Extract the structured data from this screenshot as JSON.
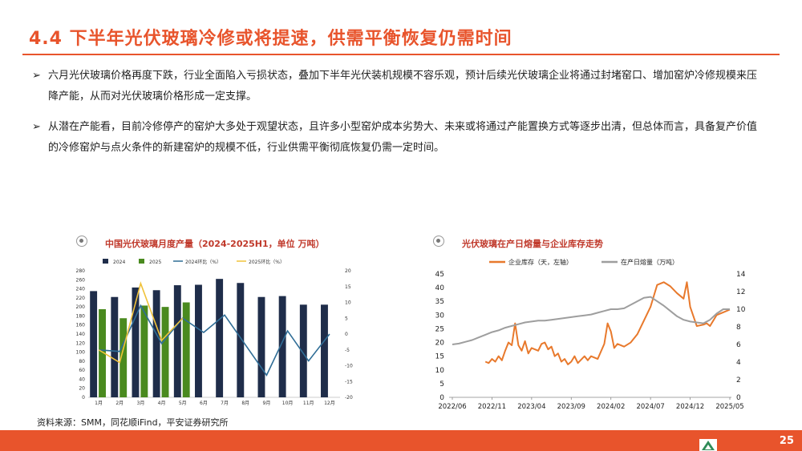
{
  "page": {
    "title": "4.4 下半年光伏玻璃冷修或将提速，供需平衡恢复仍需时间",
    "bullets": [
      "六月光伏玻璃价格再度下跌，行业全面陷入亏损状态，叠加下半年光伏装机规模不容乐观，预计后续光伏玻璃企业将通过封堵窑口、增加窑炉冷修规模来压降产能，从而对光伏玻璃价格形成一定支撑。",
      "从潜在产能看，目前冷修停产的窑炉大多处于观望状态，且许多小型窑炉成本劣势大、未来或将通过产能置换方式等逐步出清，但总体而言，具备复产价值的冷修窑炉与点火条件的新建窑炉的规模不低，行业供需平衡彻底恢复仍需一定时间。"
    ],
    "bullet_mark": "➢",
    "source": "资料来源：SMM，同花顺iFind，平安证券研究所",
    "page_number": "25",
    "colors": {
      "accent": "#e8542c"
    },
    "icons": {
      "panel": "target-circle-icon",
      "logo": "triangle-logo-icon"
    }
  },
  "chart_data": [
    {
      "type": "bar",
      "title": "中国光伏玻璃月度产量（2024-2025H1，单位 万吨）",
      "categories": [
        "1月",
        "2月",
        "3月",
        "4月",
        "5月",
        "6月",
        "7月",
        "8月",
        "9月",
        "10月",
        "11月",
        "12月"
      ],
      "series": [
        {
          "name": "2024",
          "kind": "bar",
          "axis": "left",
          "color": "#1f2d4a",
          "values": [
            235,
            222,
            243,
            237,
            248,
            249,
            262,
            253,
            222,
            224,
            205,
            205
          ]
        },
        {
          "name": "2025",
          "kind": "bar",
          "axis": "left",
          "color": "#4a8a1f",
          "values": [
            195,
            175,
            203,
            200,
            210,
            null,
            null,
            null,
            null,
            null,
            null,
            null
          ]
        },
        {
          "name": "2024环比（%）",
          "kind": "line",
          "axis": "right",
          "color": "#2f6d96",
          "values": [
            -5,
            -5.5,
            9,
            -3,
            5,
            0.5,
            6,
            -3.5,
            -13,
            1,
            -8.5,
            0
          ]
        },
        {
          "name": "2025环比（%）",
          "kind": "line",
          "axis": "right",
          "color": "#f0c23a",
          "values": [
            -5,
            -9,
            16,
            -2,
            5,
            null,
            null,
            null,
            null,
            null,
            null,
            null
          ]
        }
      ],
      "ylim_left": [
        0,
        280
      ],
      "yticks_left": [
        0,
        20,
        40,
        60,
        80,
        100,
        120,
        140,
        160,
        180,
        200,
        220,
        240,
        260,
        280
      ],
      "ylim_right": [
        -20,
        20
      ],
      "yticks_right": [
        -20,
        -15,
        -10,
        -5,
        0,
        5,
        10,
        15,
        20
      ],
      "legend": "top"
    },
    {
      "type": "line",
      "title": "光伏玻璃在产日熔量与企业库存走势",
      "x_ticks": [
        "2022/06",
        "2022/11",
        "2023/04",
        "2023/09",
        "2024/02",
        "2024/07",
        "2024/12",
        "2025/05"
      ],
      "series": [
        {
          "name": "企业库存（天，左轴）",
          "axis": "left",
          "color": "#e8792c",
          "x": [
            5,
            5.5,
            6,
            6.5,
            7,
            7.5,
            8,
            8.5,
            9,
            9.5,
            10,
            10.5,
            11,
            11.5,
            12,
            13,
            13.5,
            14,
            14.5,
            15,
            15.5,
            16,
            16.5,
            17,
            17.5,
            18,
            18.5,
            19,
            20,
            20.5,
            21,
            22,
            23,
            23.5,
            24,
            24.5,
            25,
            26,
            27,
            28,
            29,
            30,
            30.5,
            31,
            32,
            33,
            34,
            35,
            35.5,
            36,
            37,
            38,
            38.5,
            39,
            39.5,
            40,
            41,
            42
          ],
          "y": [
            13,
            12.5,
            14,
            13,
            15,
            13.5,
            17,
            20,
            19,
            27,
            19,
            17,
            20.5,
            16,
            18,
            17,
            19.5,
            20,
            17.5,
            18.5,
            15,
            16,
            13,
            14,
            12,
            13,
            15,
            12.5,
            15,
            13.5,
            15,
            14,
            19.5,
            27,
            24,
            18,
            19.5,
            18.5,
            20,
            23,
            28,
            33,
            37,
            41,
            42,
            40.5,
            38,
            36,
            42,
            33,
            26,
            26.5,
            27,
            26,
            28,
            30,
            31,
            32
          ]
        },
        {
          "name": "在产日熔量（万吨）",
          "axis": "right",
          "color": "#9e9e9e",
          "x": [
            0,
            1,
            2,
            3,
            4,
            5,
            6,
            7,
            8,
            9,
            10,
            11,
            12,
            13,
            14,
            15,
            16,
            17,
            18,
            19,
            20,
            21,
            22,
            23,
            24,
            25,
            26,
            27,
            28,
            29,
            30,
            31,
            32,
            33,
            34,
            35,
            36,
            37,
            38,
            39,
            40,
            41,
            42
          ],
          "y": [
            6.0,
            6.1,
            6.3,
            6.5,
            6.8,
            7.1,
            7.4,
            7.6,
            7.9,
            8.1,
            8.3,
            8.5,
            8.6,
            8.7,
            8.7,
            8.8,
            8.9,
            9.0,
            9.1,
            9.2,
            9.3,
            9.4,
            9.6,
            9.8,
            10.0,
            10.0,
            10.1,
            10.5,
            10.9,
            11.3,
            11.4,
            10.9,
            10.4,
            9.8,
            9.2,
            8.8,
            8.6,
            8.5,
            8.4,
            8.8,
            9.5,
            10.0,
            10.0
          ]
        }
      ],
      "xlim": [
        0,
        42
      ],
      "ylim_left": [
        0,
        45
      ],
      "yticks_left": [
        0,
        5,
        10,
        15,
        20,
        25,
        30,
        35,
        40,
        45
      ],
      "ylim_right": [
        0,
        14
      ],
      "yticks_right": [
        0,
        2,
        4,
        6,
        8,
        10,
        12,
        14
      ],
      "legend": "top"
    }
  ]
}
